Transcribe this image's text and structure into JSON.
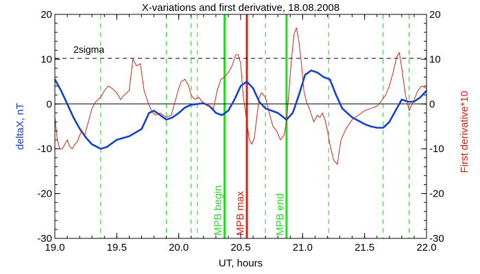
{
  "chart_data": {
    "type": "line",
    "title": "X-variations and first derivative, 18.08.2008",
    "xlabel": "UT, hours",
    "ylabel_left": "deltaX, nT",
    "ylabel_right": "First derivative*10",
    "xlim": [
      19.0,
      22.0
    ],
    "ylim": [
      -30,
      20
    ],
    "xticks": [
      "19.0",
      "19.5",
      "20.0",
      "20.5",
      "21.0",
      "21.5",
      "22.0"
    ],
    "yticks": [
      "20",
      "10",
      "0",
      "-10",
      "-20",
      "-30"
    ],
    "zero_line": 0,
    "threshold": {
      "label": "2sigma",
      "value": 10.2
    },
    "dashed_markers_x": [
      19.37,
      19.9,
      20.1,
      20.15,
      20.7,
      21.21,
      21.65,
      21.86
    ],
    "markers": [
      {
        "label": "MPB begin",
        "x": 20.37,
        "color": "#22dd22"
      },
      {
        "label": "MPB max",
        "x": 20.55,
        "color": "#e02010"
      },
      {
        "label": "MPB end",
        "x": 20.87,
        "color": "#22dd22"
      }
    ],
    "series": [
      {
        "axis": "left",
        "color": "#1040d0",
        "x": [
          19.0,
          19.05,
          19.1,
          19.15,
          19.2,
          19.25,
          19.3,
          19.37,
          19.42,
          19.5,
          19.6,
          19.7,
          19.76,
          19.8,
          19.85,
          19.9,
          19.95,
          20.0,
          20.05,
          20.1,
          20.15,
          20.2,
          20.25,
          20.3,
          20.35,
          20.4,
          20.45,
          20.5,
          20.55,
          20.6,
          20.65,
          20.7,
          20.75,
          20.8,
          20.87,
          20.92,
          20.97,
          21.02,
          21.07,
          21.12,
          21.17,
          21.22,
          21.27,
          21.32,
          21.4,
          21.5,
          21.55,
          21.6,
          21.65,
          21.7,
          21.75,
          21.8,
          21.85,
          21.9,
          21.95,
          22.0
        ],
        "y": [
          5.5,
          3.0,
          0.0,
          -3.0,
          -5.5,
          -7.5,
          -9.0,
          -10.0,
          -9.6,
          -8.0,
          -7.2,
          -5.6,
          -2.0,
          -1.5,
          -2.5,
          -3.5,
          -3.0,
          -2.0,
          -0.8,
          -0.2,
          0.0,
          0.2,
          -0.5,
          -2.0,
          -2.5,
          -1.5,
          1.0,
          4.0,
          5.0,
          3.5,
          0.5,
          -1.0,
          -1.5,
          -2.0,
          -3.5,
          -2.0,
          2.0,
          6.5,
          7.5,
          7.0,
          6.0,
          5.5,
          2.0,
          -1.0,
          -3.0,
          -4.5,
          -5.0,
          -5.3,
          -5.3,
          -4.0,
          -1.5,
          1.0,
          0.5,
          0.5,
          1.5,
          3.0
        ]
      },
      {
        "axis": "right",
        "color": "#d02010",
        "x": [
          19.0,
          19.02,
          19.04,
          19.06,
          19.08,
          19.1,
          19.12,
          19.14,
          19.16,
          19.18,
          19.2,
          19.22,
          19.24,
          19.26,
          19.28,
          19.3,
          19.33,
          19.37,
          19.4,
          19.43,
          19.46,
          19.5,
          19.53,
          19.56,
          19.6,
          19.63,
          19.66,
          19.69,
          19.72,
          19.75,
          19.78,
          19.81,
          19.85,
          19.9,
          19.94,
          19.97,
          20.0,
          20.02,
          20.05,
          20.08,
          20.1,
          20.13,
          20.16,
          20.19,
          20.22,
          20.25,
          20.28,
          20.31,
          20.34,
          20.37,
          20.4,
          20.43,
          20.46,
          20.48,
          20.5,
          20.52,
          20.55,
          20.57,
          20.59,
          20.61,
          20.63,
          20.65,
          20.67,
          20.7,
          20.73,
          20.76,
          20.79,
          20.82,
          20.85,
          20.87,
          20.89,
          20.91,
          20.93,
          20.95,
          20.97,
          20.99,
          21.01,
          21.03,
          21.06,
          21.09,
          21.12,
          21.14,
          21.16,
          21.18,
          21.2,
          21.22,
          21.25,
          21.28,
          21.31,
          21.35,
          21.4,
          21.45,
          21.5,
          21.55,
          21.6,
          21.63,
          21.67,
          21.7,
          21.73,
          21.76,
          21.78,
          21.8,
          21.83,
          21.86,
          21.9,
          21.93,
          21.96,
          22.0
        ],
        "y": [
          -3.0,
          -8.0,
          -10.0,
          -10.0,
          -9.0,
          -8.0,
          -9.5,
          -10.0,
          -9.0,
          -8.5,
          -7.0,
          -6.0,
          -7.0,
          -5.0,
          -3.0,
          -1.0,
          0.5,
          1.5,
          3.0,
          4.0,
          3.5,
          2.5,
          1.0,
          2.0,
          3.0,
          10.0,
          8.5,
          9.0,
          3.0,
          0.5,
          -1.5,
          -2.5,
          -2.0,
          -3.0,
          -2.5,
          0.5,
          3.5,
          5.0,
          5.5,
          4.0,
          2.0,
          1.0,
          1.5,
          0.5,
          0.0,
          -0.5,
          -1.0,
          3.0,
          5.5,
          6.0,
          7.0,
          8.5,
          11.0,
          11.0,
          9.0,
          2.0,
          -4.0,
          -8.0,
          -9.0,
          -7.5,
          -3.0,
          1.5,
          2.5,
          1.5,
          -2.0,
          -5.0,
          -6.0,
          -8.0,
          -7.0,
          -4.0,
          3.0,
          10.0,
          15.5,
          17.0,
          14.0,
          9.0,
          3.0,
          0.5,
          -1.5,
          -4.0,
          -2.5,
          -3.0,
          -2.0,
          -3.5,
          -6.0,
          -9.0,
          -12.5,
          -13.5,
          -8.0,
          -5.5,
          -3.5,
          -2.5,
          -1.5,
          -1.0,
          -0.5,
          0.5,
          2.0,
          4.0,
          7.0,
          10.5,
          11.5,
          8.0,
          2.0,
          -1.5,
          1.0,
          3.0,
          4.0,
          3.5
        ]
      }
    ]
  }
}
